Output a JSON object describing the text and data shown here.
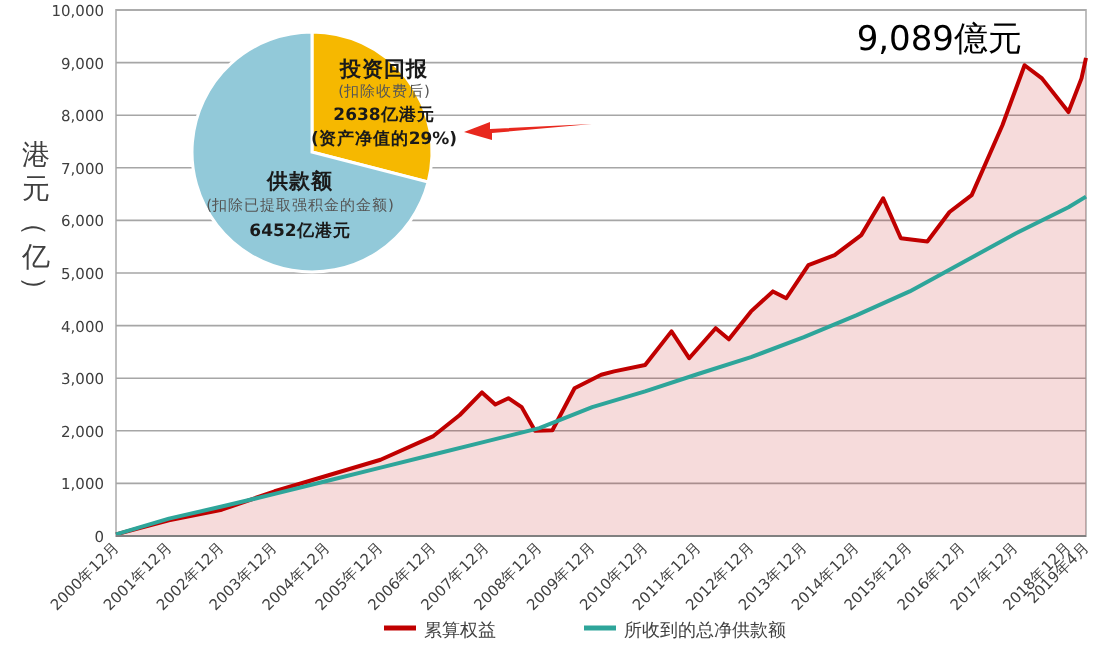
{
  "chart_data": [
    {
      "type": "line",
      "ylabel": "港元（亿）",
      "xlim": [
        "2000-12",
        "2019-04"
      ],
      "ylim": [
        0,
        10000
      ],
      "yticks": [
        {
          "value": 0,
          "label": "0"
        },
        {
          "value": 1000,
          "label": "1,000"
        },
        {
          "value": 2000,
          "label": "2,000"
        },
        {
          "value": 3000,
          "label": "3,000"
        },
        {
          "value": 4000,
          "label": "4,000"
        },
        {
          "value": 5000,
          "label": "5,000"
        },
        {
          "value": 6000,
          "label": "6,000"
        },
        {
          "value": 7000,
          "label": "7,000"
        },
        {
          "value": 8000,
          "label": "8,000"
        },
        {
          "value": 9000,
          "label": "9,000"
        },
        {
          "value": 10000,
          "label": "10,000"
        }
      ],
      "xticks": [
        {
          "value": "2000-12",
          "label": "2000年12月"
        },
        {
          "value": "2001-12",
          "label": "2001年12月"
        },
        {
          "value": "2002-12",
          "label": "2002年12月"
        },
        {
          "value": "2003-12",
          "label": "2003年12月"
        },
        {
          "value": "2004-12",
          "label": "2004年12月"
        },
        {
          "value": "2005-12",
          "label": "2005年12月"
        },
        {
          "value": "2006-12",
          "label": "2006年12月"
        },
        {
          "value": "2007-12",
          "label": "2007年12月"
        },
        {
          "value": "2008-12",
          "label": "2008年12月"
        },
        {
          "value": "2009-12",
          "label": "2009年12月"
        },
        {
          "value": "2010-12",
          "label": "2010年12月"
        },
        {
          "value": "2011-12",
          "label": "2011年12月"
        },
        {
          "value": "2012-12",
          "label": "2012年12月"
        },
        {
          "value": "2013-12",
          "label": "2013年12月"
        },
        {
          "value": "2014-12",
          "label": "2014年12月"
        },
        {
          "value": "2015-12",
          "label": "2015年12月"
        },
        {
          "value": "2016-12",
          "label": "2016年12月"
        },
        {
          "value": "2017-12",
          "label": "2017年12月"
        },
        {
          "value": "2018-12",
          "label": "2018年12月"
        },
        {
          "value": "2019-04",
          "label": "2019年4月"
        }
      ],
      "grid": "y",
      "legend": "bottom",
      "annotations": [
        {
          "text": "9,089億元",
          "x": "2019-04",
          "y": 9089
        }
      ],
      "series": [
        {
          "name": "累算权益",
          "type": "area",
          "color": "#c00000",
          "x": [
            "2000-12",
            "2001-12",
            "2002-12",
            "2003-12",
            "2004-12",
            "2005-12",
            "2006-12",
            "2007-06",
            "2007-11",
            "2008-02",
            "2008-05",
            "2008-08",
            "2008-11",
            "2009-03",
            "2009-08",
            "2010-02",
            "2010-05",
            "2010-12",
            "2011-06",
            "2011-10",
            "2012-04",
            "2012-07",
            "2012-12",
            "2013-05",
            "2013-08",
            "2014-01",
            "2014-07",
            "2015-01",
            "2015-06",
            "2015-10",
            "2016-04",
            "2016-09",
            "2017-02",
            "2017-09",
            "2018-02",
            "2018-06",
            "2018-12",
            "2019-03",
            "2019-04"
          ],
          "values": [
            30,
            300,
            500,
            850,
            1150,
            1450,
            1900,
            2300,
            2730,
            2500,
            2620,
            2450,
            2000,
            2010,
            2810,
            3065,
            3130,
            3250,
            3890,
            3380,
            3950,
            3740,
            4270,
            4650,
            4520,
            5150,
            5340,
            5720,
            6420,
            5660,
            5600,
            6160,
            6480,
            7810,
            8950,
            8700,
            8060,
            8700,
            9089
          ]
        },
        {
          "name": "所收到的总净供款额",
          "type": "line",
          "color": "#2ea59a",
          "x": [
            "2000-12",
            "2001-12",
            "2002-12",
            "2003-12",
            "2004-12",
            "2005-12",
            "2006-12",
            "2007-12",
            "2008-12",
            "2009-12",
            "2010-12",
            "2011-12",
            "2012-12",
            "2013-12",
            "2014-12",
            "2015-12",
            "2016-12",
            "2017-12",
            "2018-12",
            "2019-04"
          ],
          "values": [
            30,
            330,
            560,
            800,
            1050,
            1300,
            1550,
            1800,
            2050,
            2450,
            2750,
            3080,
            3400,
            3780,
            4200,
            4650,
            5200,
            5750,
            6250,
            6452
          ]
        }
      ]
    },
    {
      "type": "pie",
      "categories": [
        "投资回报",
        "供款额"
      ],
      "values": [
        2638,
        6452
      ],
      "colors": [
        "#f6b800",
        "#92c9d9"
      ],
      "value_labels": [
        "2638亿港元",
        "6452亿港元"
      ],
      "annotations": [
        "(扣除收费后)",
        "(资产净值的29%)",
        "(扣除已提取强积金的金额)"
      ]
    }
  ]
}
